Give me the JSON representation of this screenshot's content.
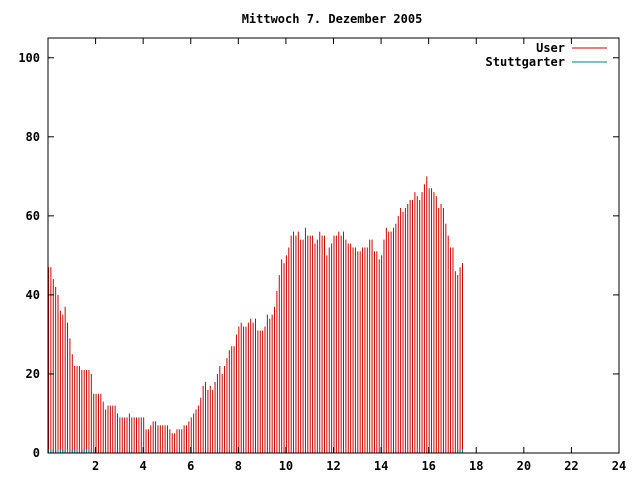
{
  "chart_data": {
    "type": "bar",
    "title": "Mittwoch 7. Dezember 2005",
    "xlabel": "",
    "ylabel": "",
    "xlim": [
      0,
      24
    ],
    "ylim": [
      0,
      105
    ],
    "x_ticks": [
      "2",
      "4",
      "6",
      "8",
      "10",
      "12",
      "14",
      "16",
      "18",
      "20",
      "22",
      "24"
    ],
    "y_ticks": [
      "0",
      "20",
      "40",
      "60",
      "80",
      "100"
    ],
    "grid": false,
    "legend_position": "top-right",
    "series": [
      {
        "name": "User",
        "color": "#cc0000",
        "interval_hours": 0.1,
        "values": [
          47,
          47,
          44,
          42,
          40,
          36,
          35,
          37,
          33,
          29,
          25,
          22,
          22,
          22,
          21,
          21,
          21,
          21,
          20,
          15,
          15,
          15,
          15,
          13,
          11,
          12,
          12,
          12,
          12,
          10,
          9,
          9,
          9,
          9,
          10,
          9,
          9,
          9,
          9,
          9,
          9,
          6,
          6,
          7,
          8,
          8,
          7,
          7,
          7,
          7,
          7,
          6,
          5,
          5,
          6,
          6,
          6,
          7,
          7,
          8,
          9,
          10,
          11,
          12,
          14,
          17,
          18,
          16,
          17,
          16,
          18,
          20,
          22,
          20,
          22,
          24,
          26,
          27,
          27,
          30,
          32,
          33,
          32,
          32,
          33,
          34,
          33,
          34,
          31,
          31,
          31,
          32,
          35,
          34,
          35,
          37,
          41,
          45,
          49,
          48,
          50,
          52,
          55,
          56,
          55,
          56,
          54,
          54,
          57,
          55,
          55,
          55,
          53,
          54,
          56,
          55,
          55,
          50,
          52,
          53,
          55,
          55,
          56,
          55,
          56,
          54,
          53,
          53,
          52,
          52,
          51,
          51,
          52,
          52,
          52,
          54,
          54,
          51,
          51,
          49,
          50,
          54,
          57,
          56,
          56,
          57,
          58,
          60,
          62,
          61,
          62,
          63,
          64,
          64,
          66,
          65,
          64,
          66,
          68,
          70,
          67,
          67,
          66,
          65,
          62,
          63,
          62,
          58,
          55,
          52,
          52,
          46,
          45,
          47,
          48
        ]
      },
      {
        "name": "Stuttgarter",
        "color": "#008080",
        "interval_hours": 0.1,
        "values": [
          1,
          1,
          1,
          1,
          1,
          1,
          1,
          1,
          1,
          1,
          1,
          1,
          1,
          1,
          1,
          1,
          1,
          1,
          1,
          1,
          0,
          0,
          0,
          0,
          0,
          0,
          0,
          0,
          0,
          0,
          0,
          0,
          0,
          0,
          0,
          0,
          0,
          0,
          0,
          0,
          0,
          0,
          0,
          0,
          0,
          0,
          0,
          0,
          0,
          0,
          0,
          0,
          0,
          0,
          0,
          0,
          0,
          0,
          0,
          0,
          0,
          0,
          0,
          0,
          0,
          0,
          0,
          0,
          0,
          0,
          0,
          0,
          0,
          0,
          0,
          0,
          0,
          0,
          0,
          0,
          0,
          0,
          0,
          0,
          0,
          0,
          0,
          0,
          0,
          0,
          0,
          0,
          0,
          0,
          0,
          0,
          0,
          0,
          0,
          0,
          0,
          0,
          0,
          0,
          0,
          0,
          0,
          0,
          0,
          0,
          0,
          0,
          0,
          0,
          0,
          0,
          0,
          0,
          0,
          0,
          0,
          0,
          0,
          0,
          0,
          0,
          0,
          0,
          0,
          0,
          0,
          0,
          0,
          0,
          0,
          0,
          0,
          0,
          0,
          0,
          0,
          0,
          0,
          0,
          0,
          0,
          0,
          0,
          0,
          0,
          0,
          0,
          0,
          0,
          0,
          0,
          0,
          0,
          0,
          0,
          0,
          0,
          0,
          0,
          0,
          0,
          0,
          0,
          0,
          0,
          0,
          0,
          1,
          1,
          1
        ]
      }
    ]
  }
}
